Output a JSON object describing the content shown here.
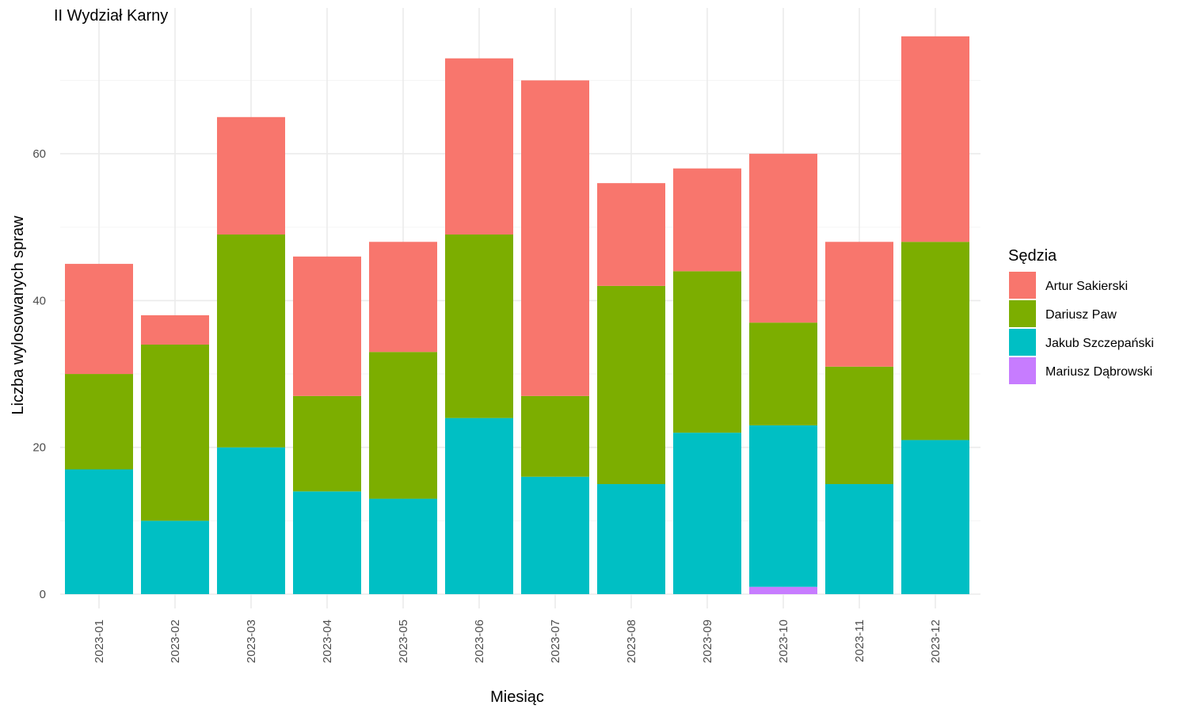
{
  "chart_data": {
    "type": "bar",
    "stacked": true,
    "title": "II Wydział Karny",
    "xlabel": "Miesiąc",
    "ylabel": "Liczba wylosowanych spraw",
    "ylim": [
      0,
      76
    ],
    "yticks": [
      0,
      20,
      40,
      60
    ],
    "grid": true,
    "legend_title": "Sędzia",
    "legend_position": "right",
    "categories": [
      "2023-01",
      "2023-02",
      "2023-03",
      "2023-04",
      "2023-05",
      "2023-06",
      "2023-07",
      "2023-08",
      "2023-09",
      "2023-10",
      "2023-11",
      "2023-12"
    ],
    "series": [
      {
        "name": "Artur Sakierski",
        "color": "#F8766D",
        "values": [
          15,
          4,
          16,
          19,
          15,
          24,
          43,
          14,
          14,
          23,
          17,
          28
        ]
      },
      {
        "name": "Dariusz Paw",
        "color": "#7CAE00",
        "values": [
          13,
          24,
          29,
          13,
          20,
          25,
          11,
          27,
          22,
          14,
          16,
          27
        ]
      },
      {
        "name": "Jakub Szczepański",
        "color": "#00BFC4",
        "values": [
          17,
          10,
          20,
          14,
          13,
          24,
          16,
          15,
          22,
          22,
          15,
          21
        ]
      },
      {
        "name": "Mariusz Dąbrowski",
        "color": "#C77CFF",
        "values": [
          0,
          0,
          0,
          0,
          0,
          0,
          0,
          0,
          0,
          1,
          0,
          0
        ]
      }
    ],
    "stack_order_bottom_to_top": [
      "Mariusz Dąbrowski",
      "Jakub Szczepański",
      "Dariusz Paw",
      "Artur Sakierski"
    ]
  }
}
